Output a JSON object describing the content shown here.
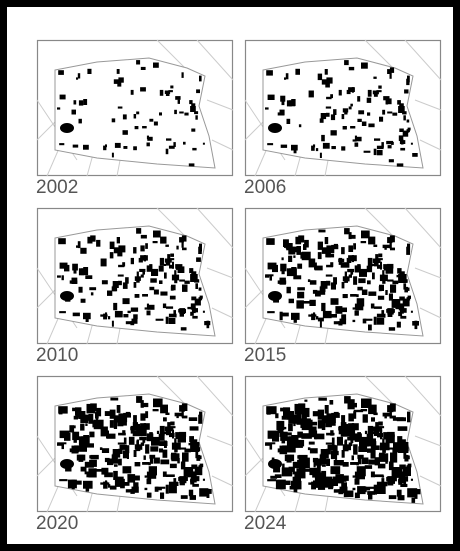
{
  "panels": [
    {
      "label": "2002"
    },
    {
      "label": "2006"
    },
    {
      "label": "2010"
    },
    {
      "label": "2015"
    },
    {
      "label": "2020"
    },
    {
      "label": "2024"
    }
  ]
}
